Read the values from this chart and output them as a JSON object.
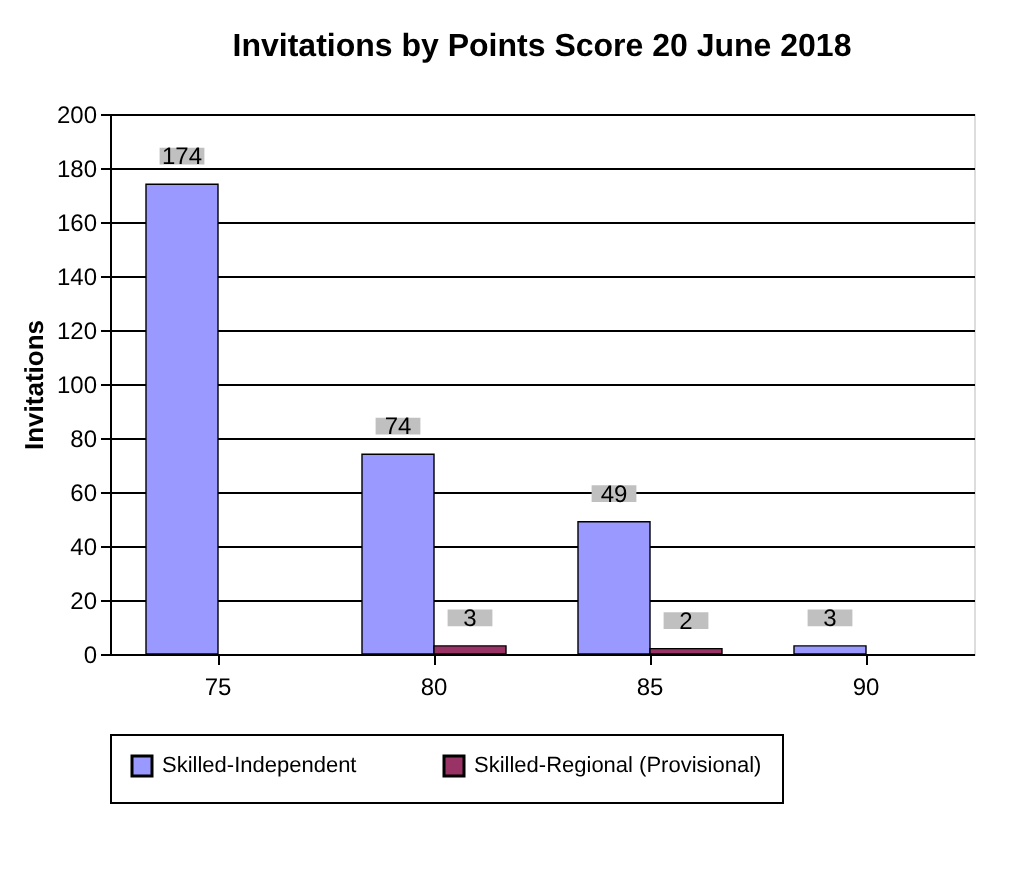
{
  "chart_data": {
    "type": "bar",
    "title": "Invitations by Points Score 20 June 2018",
    "ylabel": "Invitations",
    "categories": [
      "75",
      "80",
      "85",
      "90"
    ],
    "series": [
      {
        "name": "Skilled-Independent",
        "color": "#9999ff",
        "values": [
          174,
          74,
          49,
          3
        ]
      },
      {
        "name": "Skilled-Regional (Provisional)",
        "color": "#993366",
        "values": [
          null,
          3,
          2,
          null
        ]
      }
    ],
    "ylim": [
      0,
      200
    ],
    "yticks": [
      0,
      20,
      40,
      60,
      80,
      100,
      120,
      140,
      160,
      180,
      200
    ],
    "grid": "y",
    "legend": "bottom",
    "data_labels": true
  }
}
